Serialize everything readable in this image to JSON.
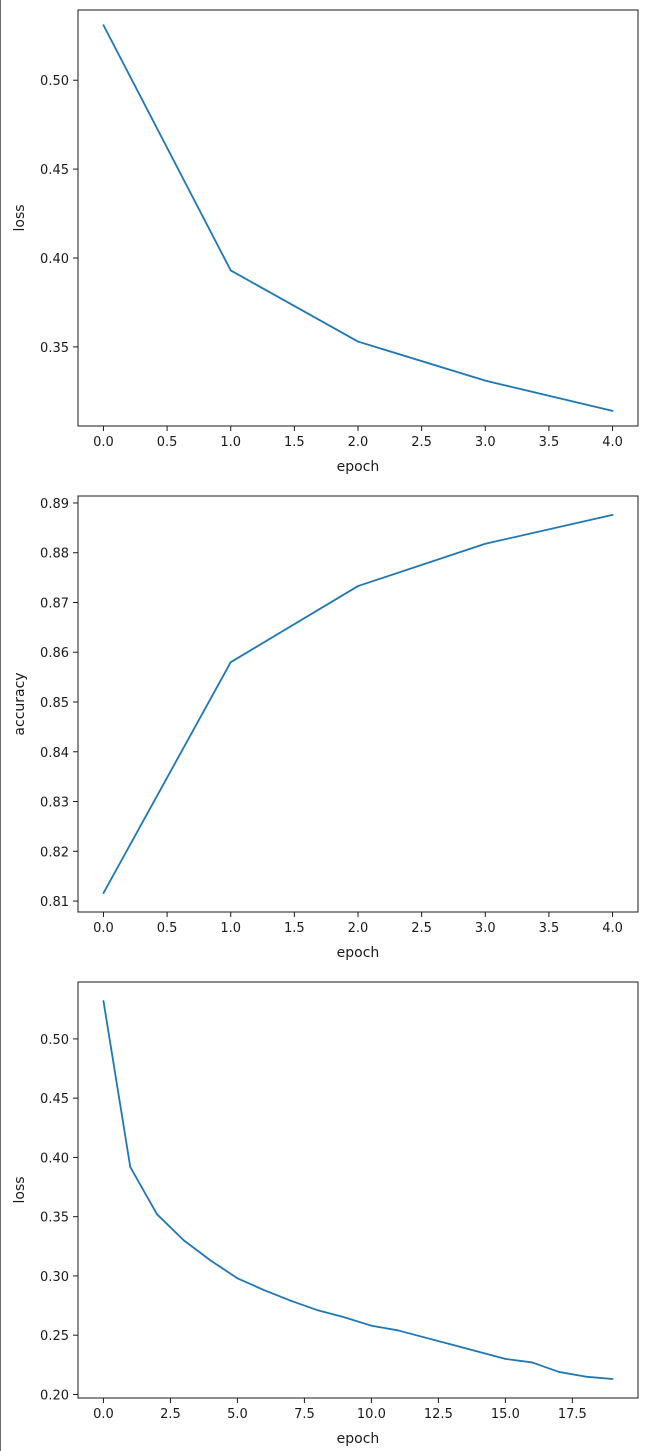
{
  "chart_data": [
    {
      "type": "line",
      "xlabel": "epoch",
      "ylabel": "loss",
      "x": [
        0,
        1,
        2,
        3,
        4
      ],
      "series": [
        {
          "values": [
            0.531,
            0.393,
            0.353,
            0.331,
            0.314
          ],
          "color": "#1f77b4"
        }
      ],
      "xlim": [
        -0.2,
        4.2
      ],
      "ylim": [
        0.3055,
        0.5395
      ],
      "xticks": [
        0,
        0.5,
        1,
        1.5,
        2,
        2.5,
        3,
        3.5,
        4
      ],
      "xtick_labels": [
        "0.0",
        "0.5",
        "1.0",
        "1.5",
        "2.0",
        "2.5",
        "3.0",
        "3.5",
        "4.0"
      ],
      "yticks": [
        0.35,
        0.4,
        0.45,
        0.5
      ],
      "ytick_labels": [
        "0.35",
        "0.40",
        "0.45",
        "0.50"
      ],
      "grid": false,
      "legend": false
    },
    {
      "type": "line",
      "xlabel": "epoch",
      "ylabel": "accuracy",
      "x": [
        0,
        1,
        2,
        3,
        4
      ],
      "series": [
        {
          "values": [
            0.8116,
            0.858,
            0.8733,
            0.8818,
            0.8876
          ],
          "color": "#1f77b4"
        }
      ],
      "xlim": [
        -0.2,
        4.2
      ],
      "ylim": [
        0.8078,
        0.8914
      ],
      "xticks": [
        0,
        0.5,
        1,
        1.5,
        2,
        2.5,
        3,
        3.5,
        4
      ],
      "xtick_labels": [
        "0.0",
        "0.5",
        "1.0",
        "1.5",
        "2.0",
        "2.5",
        "3.0",
        "3.5",
        "4.0"
      ],
      "yticks": [
        0.81,
        0.82,
        0.83,
        0.84,
        0.85,
        0.86,
        0.87,
        0.88,
        0.89
      ],
      "ytick_labels": [
        "0.81",
        "0.82",
        "0.83",
        "0.84",
        "0.85",
        "0.86",
        "0.87",
        "0.88",
        "0.89"
      ],
      "grid": false,
      "legend": false
    },
    {
      "type": "line",
      "xlabel": "epoch",
      "ylabel": "loss",
      "x": [
        0,
        1,
        2,
        3,
        4,
        5,
        6,
        7,
        8,
        9,
        10,
        11,
        12,
        13,
        14,
        15,
        16,
        17,
        18,
        19
      ],
      "series": [
        {
          "values": [
            0.532,
            0.392,
            0.352,
            0.33,
            0.313,
            0.298,
            0.288,
            0.279,
            0.271,
            0.265,
            0.258,
            0.254,
            0.248,
            0.242,
            0.236,
            0.23,
            0.227,
            0.219,
            0.215,
            0.213
          ],
          "color": "#1f77b4"
        }
      ],
      "xlim": [
        -0.95,
        19.95
      ],
      "ylim": [
        0.197,
        0.548
      ],
      "xticks": [
        0,
        2.5,
        5,
        7.5,
        10,
        12.5,
        15,
        17.5
      ],
      "xtick_labels": [
        "0.0",
        "2.5",
        "5.0",
        "7.5",
        "10.0",
        "12.5",
        "15.0",
        "17.5"
      ],
      "yticks": [
        0.2,
        0.25,
        0.3,
        0.35,
        0.4,
        0.45,
        0.5
      ],
      "ytick_labels": [
        "0.20",
        "0.25",
        "0.30",
        "0.35",
        "0.40",
        "0.45",
        "0.50"
      ],
      "grid": false,
      "legend": false
    }
  ]
}
